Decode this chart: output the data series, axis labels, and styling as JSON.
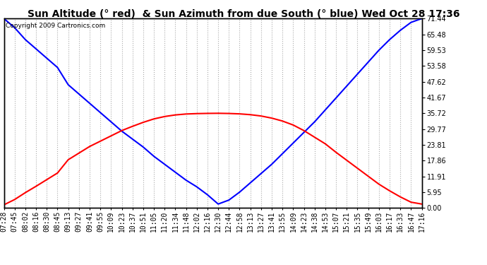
{
  "title": "Sun Altitude (° red)  & Sun Azimuth from due South (° blue) Wed Oct 28 17:36",
  "copyright": "Copyright 2009 Cartronics.com",
  "background_color": "#ffffff",
  "plot_bg_color": "#ffffff",
  "grid_color": "#aaaaaa",
  "y_ticks": [
    0.0,
    5.95,
    11.91,
    17.86,
    23.81,
    29.77,
    35.72,
    41.67,
    47.62,
    53.58,
    59.53,
    65.48,
    71.44
  ],
  "ylim": [
    0.0,
    71.44
  ],
  "x_labels": [
    "07:28",
    "07:45",
    "08:02",
    "08:16",
    "08:30",
    "08:45",
    "09:13",
    "09:27",
    "09:41",
    "09:55",
    "10:09",
    "10:23",
    "10:37",
    "10:51",
    "11:05",
    "11:20",
    "11:34",
    "11:48",
    "12:02",
    "12:16",
    "12:30",
    "12:44",
    "12:58",
    "13:13",
    "13:27",
    "13:41",
    "13:55",
    "14:09",
    "14:23",
    "14:38",
    "14:53",
    "15:07",
    "15:21",
    "15:35",
    "15:49",
    "16:03",
    "16:17",
    "16:33",
    "16:47",
    "17:16"
  ],
  "blue_data": [
    71.44,
    68.0,
    63.5,
    60.0,
    56.5,
    53.0,
    46.5,
    43.0,
    39.5,
    36.0,
    32.5,
    29.0,
    26.0,
    23.0,
    19.5,
    16.5,
    13.5,
    10.5,
    8.0,
    5.0,
    1.5,
    3.0,
    6.0,
    9.5,
    13.0,
    16.5,
    20.5,
    24.5,
    28.5,
    32.5,
    37.0,
    41.5,
    46.0,
    50.5,
    55.0,
    59.5,
    63.5,
    67.0,
    70.0,
    71.44
  ],
  "red_data": [
    1.2,
    3.2,
    5.8,
    8.2,
    10.7,
    13.2,
    18.2,
    20.7,
    23.2,
    25.2,
    27.2,
    29.2,
    30.8,
    32.3,
    33.6,
    34.5,
    35.1,
    35.45,
    35.6,
    35.68,
    35.72,
    35.65,
    35.5,
    35.2,
    34.7,
    33.9,
    32.8,
    31.3,
    29.2,
    26.7,
    24.2,
    21.0,
    18.0,
    15.0,
    12.0,
    9.0,
    6.5,
    4.2,
    2.2,
    1.5
  ],
  "blue_color": "#0000ff",
  "red_color": "#ff0000",
  "title_fontsize": 10,
  "copyright_fontsize": 6.5,
  "tick_fontsize": 7.0,
  "border_color": "#000000",
  "title_bg": "#e8e8e8"
}
